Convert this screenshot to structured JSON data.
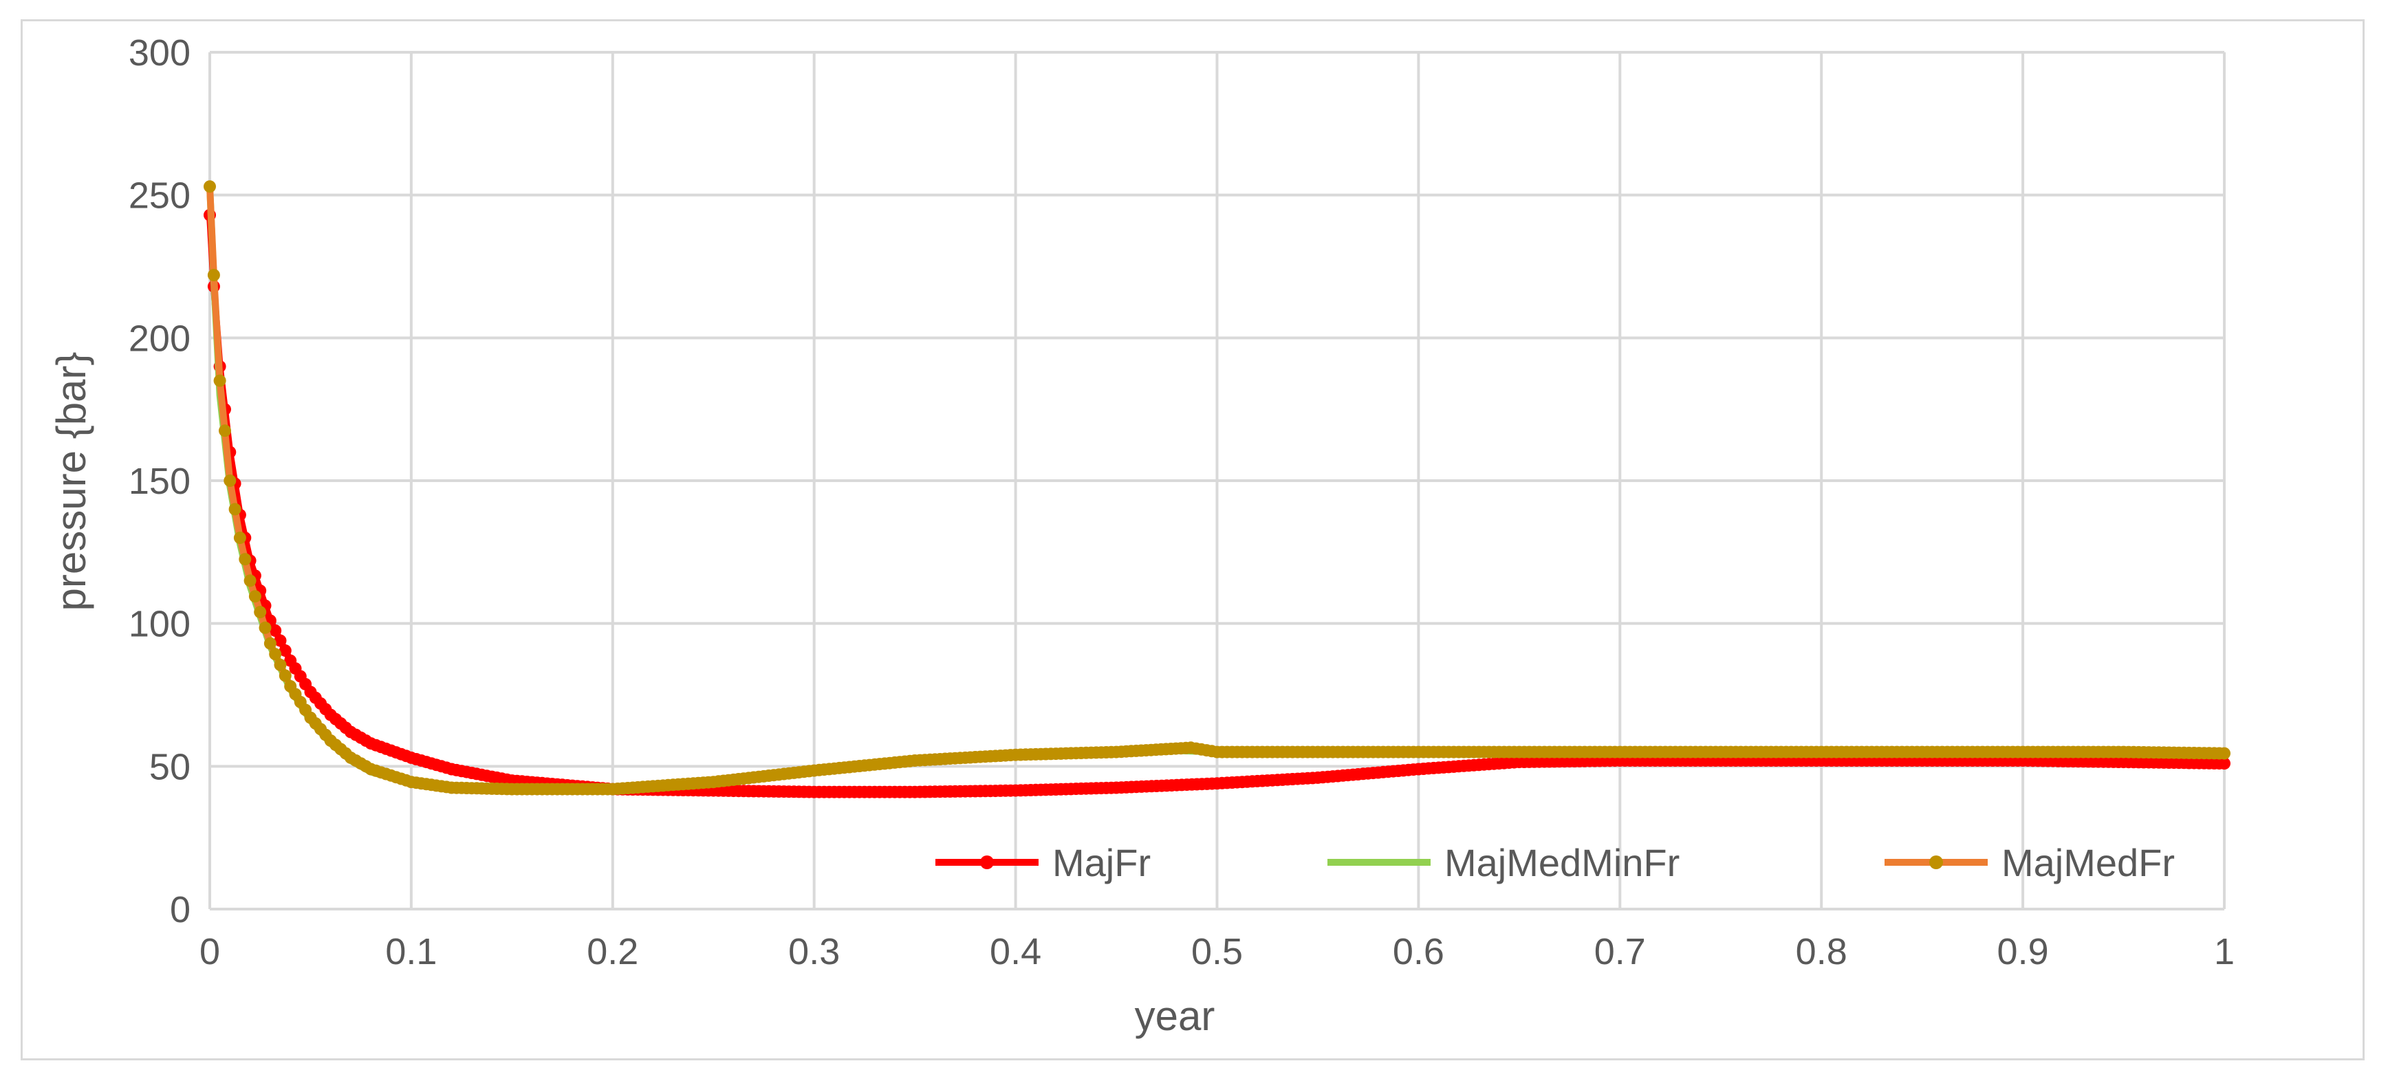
{
  "chart_data": {
    "type": "line",
    "title": "",
    "xlabel": "year",
    "ylabel": "pressure {bar}",
    "xlim": [
      0,
      1
    ],
    "ylim": [
      0,
      300
    ],
    "xticks": [
      "0",
      "0.1",
      "0.2",
      "0.3",
      "0.4",
      "0.5",
      "0.6",
      "0.7",
      "0.8",
      "0.9",
      "1"
    ],
    "yticks": [
      "0",
      "50",
      "100",
      "150",
      "200",
      "250",
      "300"
    ],
    "grid": true,
    "legend_position": "bottom-right",
    "series": [
      {
        "name": "MajFr",
        "color": "#ff0000",
        "marker": true,
        "x": [
          0,
          0.002,
          0.005,
          0.01,
          0.015,
          0.02,
          0.03,
          0.04,
          0.05,
          0.06,
          0.07,
          0.08,
          0.1,
          0.12,
          0.15,
          0.2,
          0.25,
          0.3,
          0.35,
          0.4,
          0.45,
          0.5,
          0.55,
          0.6,
          0.65,
          0.7,
          0.75,
          0.8,
          0.85,
          0.9,
          0.95,
          1.0
        ],
        "y": [
          243,
          218,
          190,
          160,
          138,
          122,
          101,
          87,
          76,
          68,
          62,
          58,
          53,
          49,
          45,
          42,
          41.5,
          41,
          41,
          41.5,
          42.5,
          44,
          46,
          49,
          51.5,
          52,
          52,
          52,
          52,
          52,
          51.5,
          51
        ]
      },
      {
        "name": "MajMedMinFr",
        "color": "#92d050",
        "marker": false,
        "x": [
          0,
          0.002,
          0.005,
          0.01,
          0.015,
          0.02,
          0.03,
          0.04,
          0.05,
          0.06,
          0.07,
          0.08,
          0.1,
          0.12,
          0.15,
          0.2,
          0.25,
          0.3,
          0.35,
          0.4,
          0.45,
          0.48,
          0.5,
          0.55,
          0.6,
          0.65,
          0.7,
          0.75,
          0.8,
          0.85,
          0.9,
          0.95,
          1.0
        ],
        "y": [
          253,
          220,
          180,
          148,
          128,
          113,
          92,
          77,
          66,
          58,
          52,
          48,
          44,
          42.5,
          42,
          42,
          44,
          48,
          51.5,
          54,
          55,
          55.5,
          55,
          55,
          55,
          55,
          55,
          55,
          55,
          55,
          55,
          55,
          54.5
        ]
      },
      {
        "name": "MajMedFr",
        "color": "#ed7d31",
        "marker_color": "#bf9000",
        "marker": true,
        "x": [
          0,
          0.002,
          0.005,
          0.01,
          0.015,
          0.02,
          0.03,
          0.04,
          0.05,
          0.06,
          0.07,
          0.08,
          0.1,
          0.12,
          0.15,
          0.2,
          0.25,
          0.3,
          0.35,
          0.4,
          0.45,
          0.487,
          0.5,
          0.55,
          0.6,
          0.65,
          0.7,
          0.75,
          0.8,
          0.85,
          0.9,
          0.95,
          1.0
        ],
        "y": [
          253,
          222,
          185,
          150,
          130,
          115,
          93,
          78,
          67,
          59,
          53,
          49,
          44.5,
          42.5,
          42,
          42,
          44.5,
          48.5,
          52,
          54,
          55,
          56.5,
          55,
          55,
          55,
          55,
          55,
          55,
          55,
          55,
          55,
          55,
          54.5
        ]
      }
    ]
  }
}
